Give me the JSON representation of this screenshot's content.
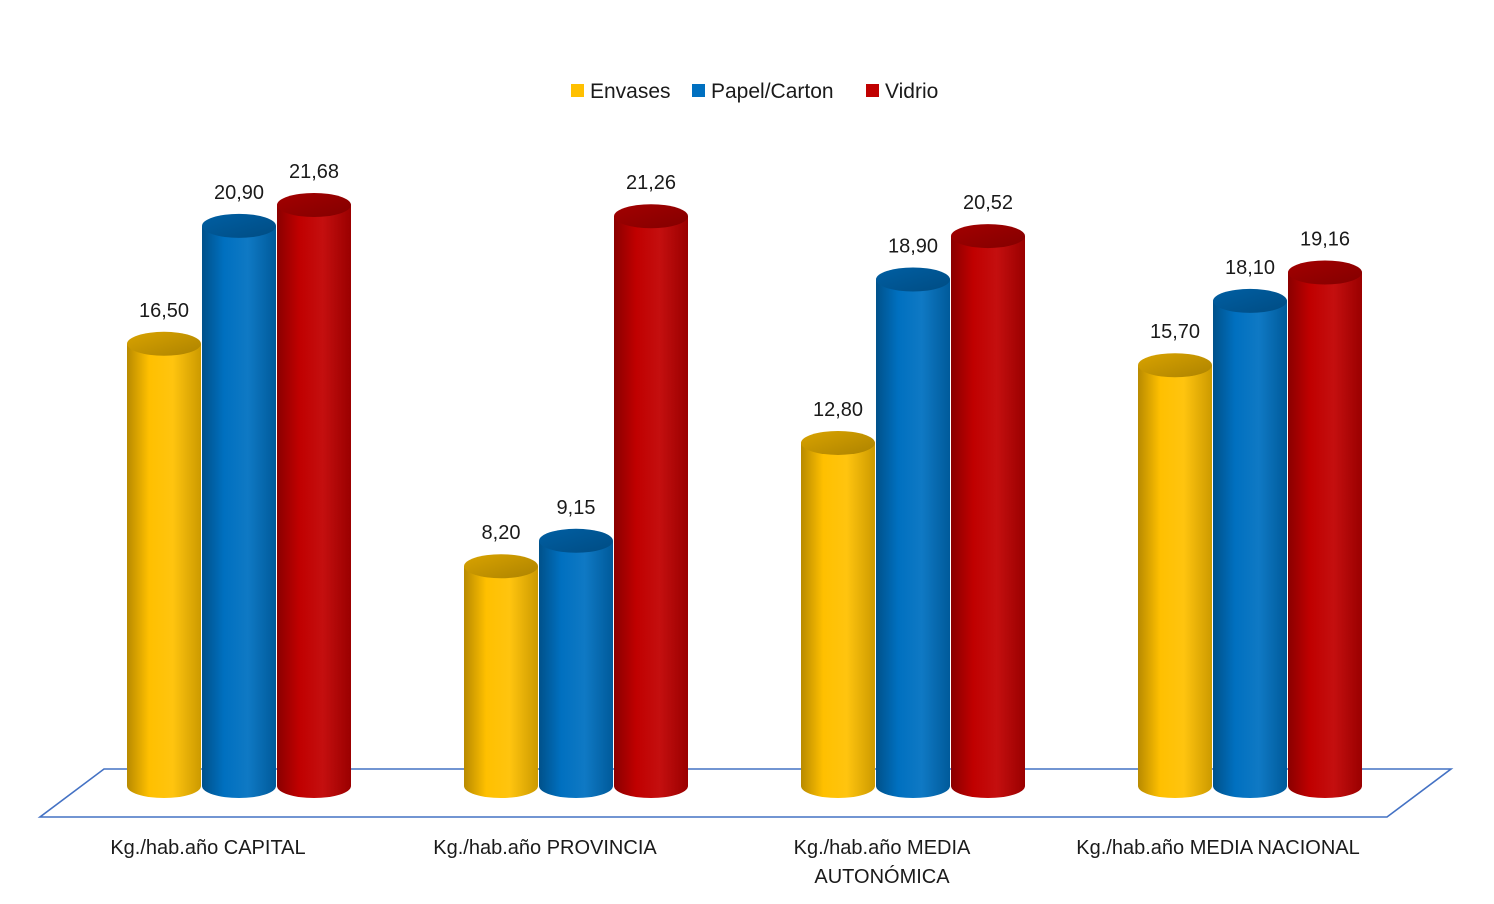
{
  "chart_data": {
    "type": "bar",
    "style": "3d-cylinder",
    "categories": [
      "Kg./hab.año CAPITAL",
      "Kg./hab.año  PROVINCIA",
      "Kg./hab.año MEDIA AUTONÓMICA",
      "Kg./hab.año MEDIA NACIONAL"
    ],
    "category_lines": [
      [
        "Kg./hab.año CAPITAL"
      ],
      [
        "Kg./hab.año  PROVINCIA"
      ],
      [
        "Kg./hab.año MEDIA",
        "AUTONÓMICA"
      ],
      [
        "Kg./hab.año MEDIA NACIONAL"
      ]
    ],
    "series": [
      {
        "name": "Envases",
        "color": "#ffc000",
        "values": [
          16.5,
          8.2,
          12.8,
          15.7
        ],
        "labels": [
          "16,50",
          "8,20",
          "12,80",
          "15,70"
        ]
      },
      {
        "name": "Papel/Carton",
        "color": "#0070c0",
        "values": [
          20.9,
          9.15,
          18.9,
          18.1
        ],
        "labels": [
          "20,90",
          "9,15",
          "18,90",
          "18,10"
        ]
      },
      {
        "name": "Vidrio",
        "color": "#c00000",
        "values": [
          21.68,
          21.26,
          20.52,
          19.16
        ],
        "labels": [
          "21,68",
          "21,26",
          "20,52",
          "19,16"
        ]
      }
    ],
    "ylim": [
      0,
      26
    ],
    "legend_position": "top-center",
    "grid": false,
    "floor_color": "#4472c4"
  }
}
